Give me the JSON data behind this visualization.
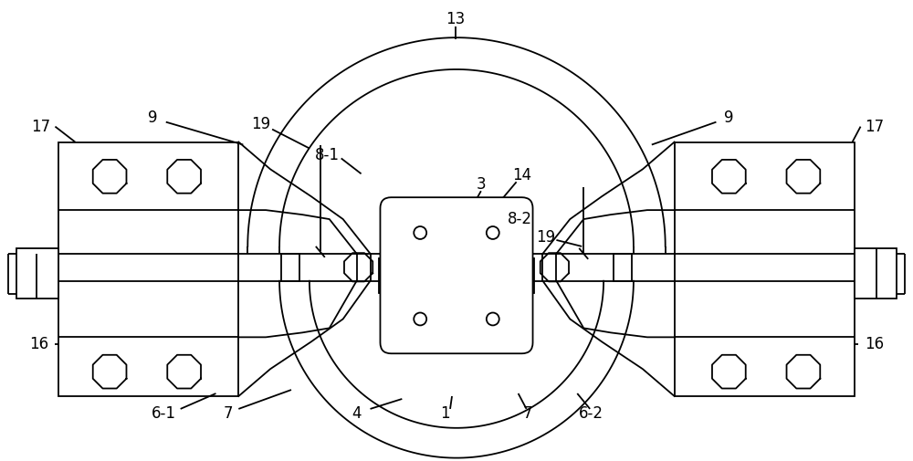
{
  "bg_color": "#ffffff",
  "line_color": "#000000",
  "fig_width": 10.0,
  "fig_height": 5.05,
  "lw": 1.3
}
